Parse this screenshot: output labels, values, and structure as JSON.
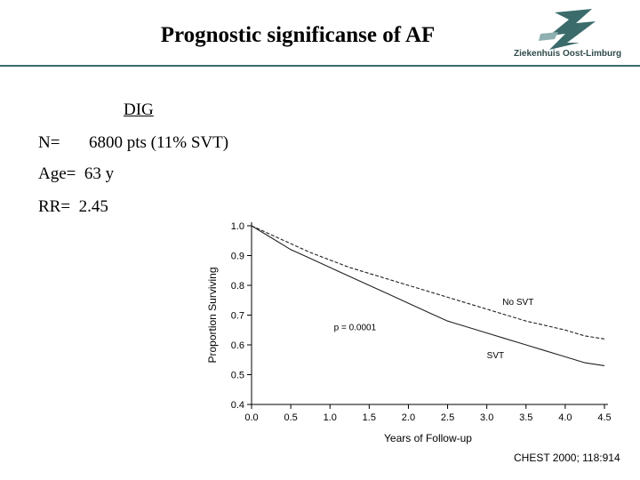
{
  "slide": {
    "title": "Prognostic significanse of AF",
    "logo_name": "Ziekenhuis Oost-Limburg",
    "subtitle": "DIG",
    "stats": [
      {
        "label": "N=",
        "value": "6800 pts (11% SVT)"
      },
      {
        "label": "Age=",
        "value": "63 y"
      },
      {
        "label": "RR=",
        "value": "2.45"
      }
    ],
    "citation": "CHEST 2000; 118:914",
    "colors": {
      "rule": "#3b6b6b",
      "logo": "#3b6b6b"
    }
  },
  "chart_data": {
    "type": "line",
    "xlabel": "Years of Follow-up",
    "ylabel": "Proportion Surviving",
    "xlim": [
      0,
      4.5
    ],
    "ylim": [
      0.4,
      1.0
    ],
    "xticks": [
      "0.0",
      "0.5",
      "1.0",
      "1.5",
      "2.0",
      "2.5",
      "3.0",
      "3.5",
      "4.0",
      "4.5"
    ],
    "yticks": [
      "0.4",
      "0.5",
      "0.6",
      "0.7",
      "0.8",
      "0.9",
      "1.0"
    ],
    "annotation": "p = 0.0001",
    "grid": false,
    "series": [
      {
        "name": "No SVT",
        "style": "dashed",
        "x": [
          0,
          0.25,
          0.5,
          0.75,
          1.0,
          1.25,
          1.5,
          1.75,
          2.0,
          2.25,
          2.5,
          2.75,
          3.0,
          3.25,
          3.5,
          3.75,
          4.0,
          4.25,
          4.5
        ],
        "y": [
          1.0,
          0.97,
          0.94,
          0.91,
          0.885,
          0.86,
          0.84,
          0.82,
          0.8,
          0.78,
          0.76,
          0.74,
          0.72,
          0.7,
          0.68,
          0.665,
          0.65,
          0.63,
          0.62
        ]
      },
      {
        "name": "SVT",
        "style": "solid",
        "x": [
          0,
          0.25,
          0.5,
          0.75,
          1.0,
          1.25,
          1.5,
          1.75,
          2.0,
          2.25,
          2.5,
          2.75,
          3.0,
          3.25,
          3.5,
          3.75,
          4.0,
          4.25,
          4.5
        ],
        "y": [
          1.0,
          0.96,
          0.92,
          0.89,
          0.86,
          0.83,
          0.8,
          0.77,
          0.74,
          0.71,
          0.68,
          0.66,
          0.64,
          0.62,
          0.6,
          0.58,
          0.56,
          0.54,
          0.53
        ]
      }
    ]
  }
}
